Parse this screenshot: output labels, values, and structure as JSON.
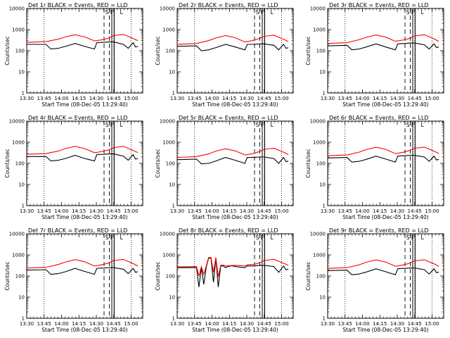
{
  "chart_data": [
    {
      "type": "line",
      "title": "Det 1r BLACK = Events, RED = LLD",
      "xlabel": "Start Time (08-Dec-05 13:29:40)",
      "ylabel": "Counts/sec",
      "x_ticks": [
        "13:30",
        "13:45",
        "14:00",
        "14:15",
        "14:30",
        "14:45",
        "15:00"
      ],
      "y_ticks": [
        "1",
        "10",
        "100",
        "1000",
        "10000"
      ],
      "ylim": [
        1,
        10000
      ],
      "yscale": "log",
      "markers": [
        "S",
        "F",
        "L"
      ],
      "series": [
        {
          "color": "#000000",
          "x": [
            0,
            4,
            5,
            6.5,
            8,
            10,
            12,
            14,
            14.5,
            16,
            17,
            18,
            20,
            21,
            22,
            22.5,
            23
          ],
          "y": [
            200,
            200,
            120,
            130,
            160,
            220,
            160,
            120,
            240,
            250,
            260,
            260,
            200,
            130,
            240,
            150,
            160
          ]
        },
        {
          "color": "#ff0000",
          "x": [
            0,
            4,
            6.5,
            8,
            10,
            12,
            14,
            14.5,
            16,
            17,
            18,
            20,
            22,
            23
          ],
          "y": [
            250,
            270,
            350,
            450,
            570,
            450,
            290,
            300,
            340,
            400,
            520,
            590,
            380,
            300
          ]
        }
      ]
    },
    {
      "type": "line",
      "title": "Det 2r BLACK = Events, RED = LLD",
      "xlabel": "Start Time (08-Dec-05 13:29:40)",
      "ylabel": "Counts/sec",
      "x_ticks": [
        "13:30",
        "13:45",
        "14:00",
        "14:15",
        "14:30",
        "14:45",
        "15:00"
      ],
      "y_ticks": [
        "1",
        "10",
        "100",
        "1000",
        "10000"
      ],
      "ylim": [
        1,
        10000
      ],
      "yscale": "log",
      "markers": [
        "S",
        "F",
        "L"
      ],
      "series": [
        {
          "color": "#000000",
          "x": [
            0,
            4,
            5,
            6.5,
            8,
            10,
            12,
            14,
            14.5,
            16,
            17,
            18,
            20,
            21,
            22,
            22.5,
            23
          ],
          "y": [
            160,
            170,
            100,
            110,
            140,
            200,
            150,
            110,
            200,
            200,
            210,
            210,
            180,
            110,
            200,
            130,
            140
          ]
        },
        {
          "color": "#ff0000",
          "x": [
            0,
            4,
            6.5,
            8,
            10,
            12,
            14,
            14.5,
            16,
            17,
            18,
            20,
            22,
            23
          ],
          "y": [
            200,
            220,
            300,
            400,
            520,
            410,
            260,
            270,
            320,
            380,
            480,
            540,
            350,
            270
          ]
        }
      ]
    },
    {
      "type": "line",
      "title": "Det 3r BLACK = Events, RED = LLD",
      "xlabel": "Start Time (08-Dec-05 13:29:40)",
      "ylabel": "Counts/sec",
      "x_ticks": [
        "13:30",
        "13:45",
        "14:00",
        "14:15",
        "14:30",
        "14:45",
        "15:00"
      ],
      "y_ticks": [
        "1",
        "10",
        "100",
        "1000",
        "10000"
      ],
      "ylim": [
        1,
        10000
      ],
      "yscale": "log",
      "markers": [
        "S",
        "F",
        "L"
      ],
      "series": [
        {
          "color": "#000000",
          "x": [
            0,
            4,
            5,
            6.5,
            8,
            10,
            12,
            14,
            14.5,
            16,
            17,
            18,
            20,
            21,
            22,
            22.5,
            23
          ],
          "y": [
            170,
            180,
            110,
            120,
            150,
            210,
            150,
            110,
            210,
            220,
            230,
            230,
            190,
            120,
            210,
            140,
            150
          ]
        },
        {
          "color": "#ff0000",
          "x": [
            0,
            4,
            6.5,
            8,
            10,
            12,
            14,
            14.5,
            16,
            17,
            18,
            20,
            22,
            23
          ],
          "y": [
            220,
            240,
            330,
            430,
            560,
            440,
            280,
            290,
            330,
            390,
            500,
            570,
            360,
            280
          ]
        }
      ]
    },
    {
      "type": "line",
      "title": "Det 4r BLACK = Events, RED = LLD",
      "xlabel": "Start Time (08-Dec-05 13:29:40)",
      "ylabel": "Counts/sec",
      "x_ticks": [
        "13:30",
        "13:45",
        "14:00",
        "14:15",
        "14:30",
        "14:45",
        "15:00"
      ],
      "y_ticks": [
        "1",
        "10",
        "100",
        "1000",
        "10000"
      ],
      "ylim": [
        1,
        10000
      ],
      "yscale": "log",
      "markers": [
        "S",
        "F",
        "L"
      ],
      "series": [
        {
          "color": "#000000",
          "x": [
            0,
            4,
            5,
            6.5,
            8,
            10,
            12,
            14,
            14.5,
            16,
            17,
            18,
            20,
            21,
            22,
            22.5,
            23
          ],
          "y": [
            210,
            210,
            130,
            140,
            170,
            240,
            170,
            130,
            260,
            270,
            280,
            280,
            220,
            140,
            260,
            160,
            170
          ]
        },
        {
          "color": "#ff0000",
          "x": [
            0,
            4,
            6.5,
            8,
            10,
            12,
            14,
            14.5,
            16,
            17,
            18,
            20,
            22,
            23
          ],
          "y": [
            270,
            290,
            380,
            500,
            640,
            500,
            320,
            330,
            380,
            440,
            560,
            640,
            410,
            320
          ]
        }
      ]
    },
    {
      "type": "line",
      "title": "Det 5r BLACK = Events, RED = LLD",
      "xlabel": "Start Time (08-Dec-05 13:29:40)",
      "ylabel": "Counts/sec",
      "x_ticks": [
        "13:30",
        "13:45",
        "14:00",
        "14:15",
        "14:30",
        "14:45",
        "15:00"
      ],
      "y_ticks": [
        "1",
        "10",
        "100",
        "1000",
        "10000"
      ],
      "ylim": [
        1,
        10000
      ],
      "yscale": "log",
      "markers": [
        "S",
        "F",
        "L"
      ],
      "series": [
        {
          "color": "#000000",
          "x": [
            0,
            4,
            5,
            6.5,
            8,
            10,
            12,
            14,
            14.5,
            16,
            17,
            18,
            20,
            21,
            22,
            22.5,
            23
          ],
          "y": [
            150,
            160,
            95,
            100,
            130,
            190,
            140,
            100,
            190,
            190,
            200,
            200,
            170,
            100,
            190,
            120,
            130
          ]
        },
        {
          "color": "#ff0000",
          "x": [
            0,
            4,
            6.5,
            8,
            10,
            12,
            14,
            14.5,
            16,
            17,
            18,
            20,
            22,
            23
          ],
          "y": [
            190,
            210,
            280,
            380,
            490,
            390,
            250,
            260,
            300,
            360,
            460,
            520,
            340,
            260
          ]
        }
      ]
    },
    {
      "type": "line",
      "title": "Det 6r BLACK = Events, RED = LLD",
      "xlabel": "Start Time (08-Dec-05 13:29:40)",
      "ylabel": "Counts/sec",
      "x_ticks": [
        "13:30",
        "13:45",
        "14:00",
        "14:15",
        "14:30",
        "14:45",
        "15:00"
      ],
      "y_ticks": [
        "1",
        "10",
        "100",
        "1000",
        "10000"
      ],
      "ylim": [
        1,
        10000
      ],
      "yscale": "log",
      "markers": [
        "S",
        "F",
        "L"
      ],
      "series": [
        {
          "color": "#000000",
          "x": [
            0,
            4,
            5,
            6.5,
            8,
            10,
            12,
            14,
            14.5,
            16,
            17,
            18,
            20,
            21,
            22,
            22.5,
            23
          ],
          "y": [
            180,
            190,
            115,
            125,
            155,
            220,
            160,
            115,
            220,
            230,
            240,
            240,
            200,
            125,
            220,
            145,
            155
          ]
        },
        {
          "color": "#ff0000",
          "x": [
            0,
            4,
            6.5,
            8,
            10,
            12,
            14,
            14.5,
            16,
            17,
            18,
            20,
            22,
            23
          ],
          "y": [
            230,
            250,
            340,
            450,
            580,
            460,
            290,
            300,
            350,
            410,
            520,
            590,
            380,
            290
          ]
        }
      ]
    },
    {
      "type": "line",
      "title": "Det 7r BLACK = Events, RED = LLD",
      "xlabel": "Start Time (08-Dec-05 13:29:40)",
      "ylabel": "Counts/sec",
      "x_ticks": [
        "13:30",
        "13:45",
        "14:00",
        "14:15",
        "14:30",
        "14:45",
        "15:00"
      ],
      "y_ticks": [
        "1",
        "10",
        "100",
        "1000",
        "10000"
      ],
      "ylim": [
        1,
        10000
      ],
      "yscale": "log",
      "markers": [
        "S",
        "F",
        "L"
      ],
      "series": [
        {
          "color": "#000000",
          "x": [
            0,
            4,
            5,
            6.5,
            8,
            10,
            12,
            14,
            14.5,
            16,
            17,
            18,
            20,
            21,
            22,
            22.5,
            23
          ],
          "y": [
            190,
            200,
            120,
            130,
            160,
            230,
            165,
            120,
            230,
            240,
            250,
            250,
            210,
            130,
            230,
            150,
            160
          ]
        },
        {
          "color": "#ff0000",
          "x": [
            0,
            4,
            6.5,
            8,
            10,
            12,
            14,
            14.5,
            16,
            17,
            18,
            20,
            22,
            23
          ],
          "y": [
            240,
            260,
            350,
            460,
            600,
            470,
            300,
            310,
            360,
            420,
            540,
            610,
            390,
            300
          ]
        }
      ]
    },
    {
      "type": "line",
      "title": "Det 8r BLACK = Events, RED = LLD",
      "xlabel": "Start Time (08-Dec-05 13:29:40)",
      "ylabel": "Counts/sec",
      "x_ticks": [
        "13:30",
        "13:45",
        "14:00",
        "14:15",
        "14:30",
        "14:45",
        "15:00"
      ],
      "y_ticks": [
        "1",
        "10",
        "100",
        "1000",
        "10000"
      ],
      "ylim": [
        1,
        10000
      ],
      "yscale": "log",
      "markers": [
        "S",
        "F",
        "L"
      ],
      "series": [
        {
          "color": "#000000",
          "x": [
            0,
            4,
            4.5,
            5,
            5.5,
            6,
            6.5,
            7,
            7.5,
            8,
            8.5,
            9,
            9.5,
            10,
            10.5,
            11,
            11.5,
            12,
            14,
            14.5,
            16,
            17,
            18,
            20,
            21,
            22,
            22.5,
            23
          ],
          "y": [
            250,
            250,
            30,
            250,
            40,
            260,
            700,
            700,
            50,
            700,
            30,
            300,
            300,
            250,
            280,
            300,
            300,
            280,
            250,
            300,
            300,
            320,
            320,
            280,
            150,
            300,
            200,
            210
          ]
        },
        {
          "color": "#ff0000",
          "x": [
            0,
            4,
            4.5,
            5,
            5.5,
            6,
            6.5,
            7,
            7.5,
            8,
            8.5,
            9,
            9.5,
            10,
            12,
            14,
            14.5,
            16,
            17,
            18,
            20,
            22,
            23
          ],
          "y": [
            270,
            280,
            100,
            280,
            120,
            300,
            750,
            750,
            150,
            750,
            90,
            320,
            330,
            300,
            320,
            300,
            340,
            360,
            420,
            540,
            620,
            400,
            320
          ]
        }
      ]
    },
    {
      "type": "line",
      "title": "Det 9r BLACK = Events, RED = LLD",
      "xlabel": "Start Time (08-Dec-05 13:29:40)",
      "ylabel": "Counts/sec",
      "x_ticks": [
        "13:30",
        "13:45",
        "14:00",
        "14:15",
        "14:30",
        "14:45",
        "15:00"
      ],
      "y_ticks": [
        "1",
        "10",
        "100",
        "1000",
        "10000"
      ],
      "ylim": [
        1,
        10000
      ],
      "yscale": "log",
      "markers": [
        "S",
        "F",
        "L"
      ],
      "series": [
        {
          "color": "#000000",
          "x": [
            0,
            4,
            5,
            6.5,
            8,
            10,
            12,
            14,
            14.5,
            16,
            17,
            18,
            20,
            21,
            22,
            22.5,
            23
          ],
          "y": [
            180,
            190,
            115,
            125,
            155,
            220,
            160,
            115,
            220,
            230,
            240,
            240,
            200,
            125,
            220,
            145,
            155
          ]
        },
        {
          "color": "#ff0000",
          "x": [
            0,
            4,
            6.5,
            8,
            10,
            12,
            14,
            14.5,
            16,
            17,
            18,
            20,
            22,
            23
          ],
          "y": [
            230,
            250,
            340,
            450,
            580,
            460,
            290,
            300,
            350,
            410,
            520,
            590,
            380,
            290
          ]
        }
      ]
    }
  ]
}
